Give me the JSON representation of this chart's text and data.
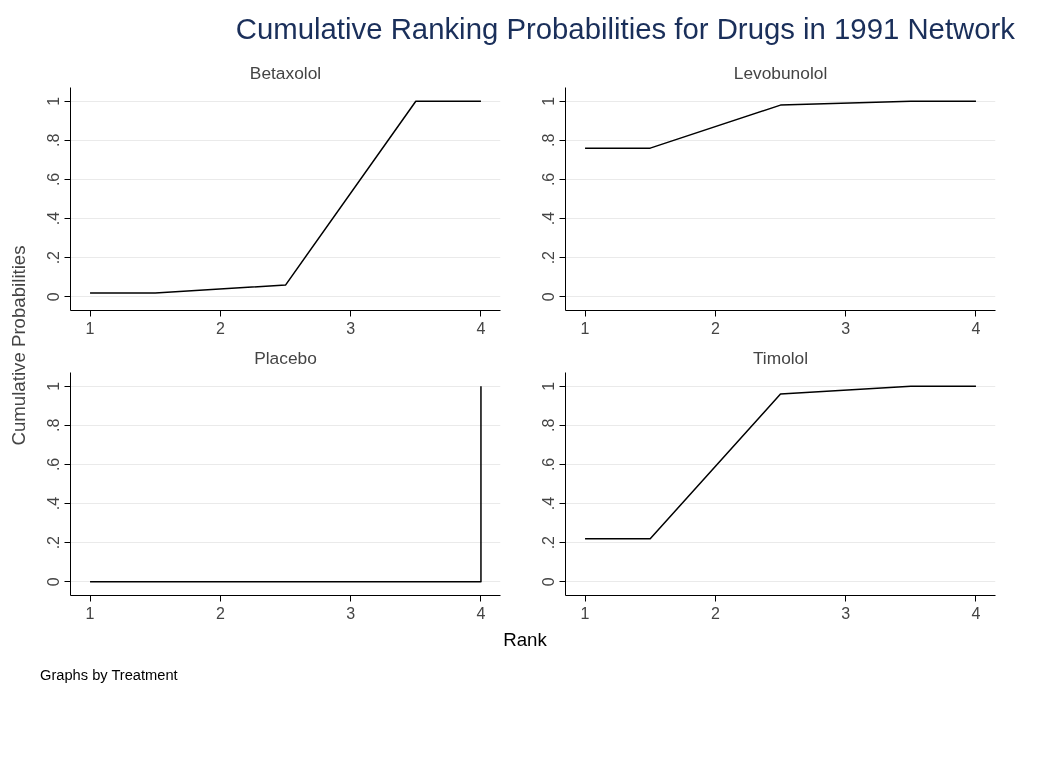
{
  "chart_data": [
    {
      "type": "line",
      "title": "Betaxolol",
      "ylabel": "Cumulative Probabilities",
      "xlabel": "Rank",
      "annotations": [
        "Cumulative Ranking Probabilities for Drugs in 1991 Network",
        "Graphs by Treatment"
      ],
      "x": [
        1,
        1.5,
        2.5,
        3.5,
        4
      ],
      "series": [
        {
          "color": "#000000",
          "values": [
            0.02,
            0.02,
            0.06,
            1,
            1
          ]
        }
      ],
      "xlim": [
        0.85,
        4.15
      ],
      "ylim": [
        -0.07,
        1.07
      ],
      "xticks": [
        1,
        2,
        3,
        4
      ],
      "yticks": [
        0,
        {
          "value": 0.2,
          "label": ".2"
        },
        {
          "value": 0.4,
          "label": ".4"
        },
        {
          "value": 0.6,
          "label": ".6"
        },
        {
          "value": 0.8,
          "label": ".8"
        },
        1
      ],
      "grid": "y",
      "line_style": "solid"
    },
    {
      "type": "line",
      "title": "Levobunolol",
      "x": [
        1,
        1.5,
        2.5,
        3.5,
        4
      ],
      "series": [
        {
          "color": "#000000",
          "values": [
            0.76,
            0.76,
            0.98,
            1,
            1
          ]
        }
      ],
      "xlim": [
        0.85,
        4.15
      ],
      "ylim": [
        -0.07,
        1.07
      ],
      "xticks": [
        1,
        2,
        3,
        4
      ],
      "yticks": [
        0,
        {
          "value": 0.2,
          "label": ".2"
        },
        {
          "value": 0.4,
          "label": ".4"
        },
        {
          "value": 0.6,
          "label": ".6"
        },
        {
          "value": 0.8,
          "label": ".8"
        },
        1
      ],
      "grid": "y",
      "line_style": "solid"
    },
    {
      "type": "line",
      "title": "Placebo",
      "x": [
        1,
        4,
        4
      ],
      "series": [
        {
          "color": "#000000",
          "values": [
            0,
            0,
            1
          ]
        }
      ],
      "xlim": [
        0.85,
        4.15
      ],
      "ylim": [
        -0.07,
        1.07
      ],
      "xticks": [
        1,
        2,
        3,
        4
      ],
      "yticks": [
        0,
        {
          "value": 0.2,
          "label": ".2"
        },
        {
          "value": 0.4,
          "label": ".4"
        },
        {
          "value": 0.6,
          "label": ".6"
        },
        {
          "value": 0.8,
          "label": ".8"
        },
        1
      ],
      "grid": "y",
      "line_style": "solid"
    },
    {
      "type": "line",
      "title": "Timolol",
      "x": [
        1,
        1.5,
        2.5,
        3.5,
        4
      ],
      "series": [
        {
          "color": "#000000",
          "values": [
            0.22,
            0.22,
            0.96,
            1,
            1
          ]
        }
      ],
      "xlim": [
        0.85,
        4.15
      ],
      "ylim": [
        -0.07,
        1.07
      ],
      "xticks": [
        1,
        2,
        3,
        4
      ],
      "yticks": [
        0,
        {
          "value": 0.2,
          "label": ".2"
        },
        {
          "value": 0.4,
          "label": ".4"
        },
        {
          "value": 0.6,
          "label": ".6"
        },
        {
          "value": 0.8,
          "label": ".8"
        },
        1
      ],
      "grid": "y",
      "line_style": "solid"
    }
  ]
}
